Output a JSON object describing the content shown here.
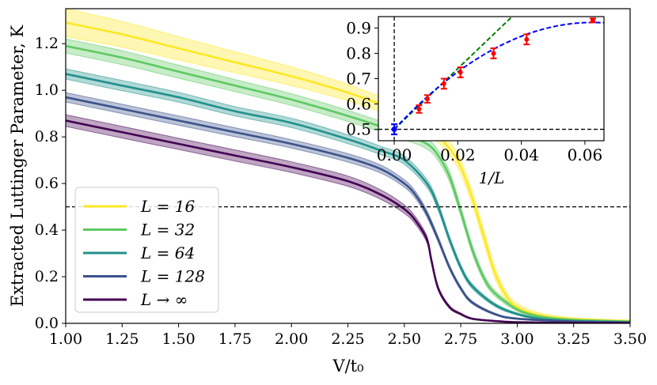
{
  "chart_data": [
    {
      "type": "line",
      "xlabel": "V/t₀",
      "ylabel": "Extracted Luttinger Parameter, K",
      "xlim": [
        1.0,
        3.5
      ],
      "ylim": [
        0.0,
        1.35
      ],
      "xticks": [
        1.0,
        1.25,
        1.5,
        1.75,
        2.0,
        2.25,
        2.5,
        2.75,
        3.0,
        3.25,
        3.5
      ],
      "xtick_labels": [
        "1.00",
        "1.25",
        "1.50",
        "1.75",
        "2.00",
        "2.25",
        "2.50",
        "2.75",
        "3.00",
        "3.25",
        "3.50"
      ],
      "yticks": [
        0.0,
        0.2,
        0.4,
        0.6,
        0.8,
        1.0,
        1.2
      ],
      "ytick_labels": [
        "0.0",
        "0.2",
        "0.4",
        "0.6",
        "0.8",
        "1.0",
        "1.2"
      ],
      "reference_line": {
        "y": 0.5,
        "style": "dashed",
        "color": "#000000"
      },
      "legend_position": "lower-left",
      "series": [
        {
          "name": "L = 16",
          "color": "#fde725",
          "x": [
            1.0,
            1.25,
            1.5,
            1.75,
            2.0,
            2.25,
            2.5,
            2.6,
            2.7,
            2.75,
            2.8,
            2.85,
            2.9,
            2.95,
            3.0,
            3.1,
            3.25,
            3.5
          ],
          "y": [
            1.29,
            1.24,
            1.18,
            1.12,
            1.06,
            0.99,
            0.9,
            0.85,
            0.75,
            0.67,
            0.54,
            0.38,
            0.22,
            0.12,
            0.07,
            0.035,
            0.018,
            0.01
          ],
          "band": [
            0.06,
            0.055,
            0.05,
            0.045,
            0.04,
            0.035,
            0.03,
            0.03,
            0.03,
            0.03,
            0.03,
            0.03,
            0.025,
            0.02,
            0.015,
            0.01,
            0.006,
            0.004
          ]
        },
        {
          "name": "L = 32",
          "color": "#5ec962",
          "x": [
            1.0,
            1.25,
            1.5,
            1.75,
            2.0,
            2.25,
            2.5,
            2.6,
            2.65,
            2.7,
            2.75,
            2.8,
            2.85,
            2.9,
            3.0,
            3.1,
            3.25,
            3.5
          ],
          "y": [
            1.19,
            1.14,
            1.08,
            1.02,
            0.96,
            0.89,
            0.81,
            0.77,
            0.72,
            0.63,
            0.48,
            0.32,
            0.2,
            0.13,
            0.06,
            0.03,
            0.015,
            0.008
          ],
          "band": [
            0.03,
            0.03,
            0.028,
            0.026,
            0.025,
            0.024,
            0.022,
            0.022,
            0.022,
            0.022,
            0.02,
            0.018,
            0.015,
            0.012,
            0.008,
            0.005,
            0.004,
            0.003
          ]
        },
        {
          "name": "L = 64",
          "color": "#21918c",
          "x": [
            1.0,
            1.25,
            1.5,
            1.75,
            2.0,
            2.25,
            2.4,
            2.5,
            2.6,
            2.65,
            2.7,
            2.75,
            2.8,
            2.9,
            3.0,
            3.1,
            3.25,
            3.5
          ],
          "y": [
            1.07,
            1.02,
            0.97,
            0.91,
            0.86,
            0.79,
            0.74,
            0.7,
            0.6,
            0.5,
            0.36,
            0.24,
            0.16,
            0.08,
            0.04,
            0.02,
            0.01,
            0.005
          ],
          "band": [
            0.022,
            0.022,
            0.021,
            0.02,
            0.02,
            0.019,
            0.018,
            0.018,
            0.017,
            0.016,
            0.014,
            0.012,
            0.01,
            0.007,
            0.005,
            0.004,
            0.003,
            0.002
          ]
        },
        {
          "name": "L = 128",
          "color": "#3b528b",
          "x": [
            1.0,
            1.25,
            1.5,
            1.75,
            2.0,
            2.25,
            2.4,
            2.5,
            2.55,
            2.6,
            2.65,
            2.7,
            2.75,
            2.8,
            2.9,
            3.0,
            3.25,
            3.5
          ],
          "y": [
            0.97,
            0.92,
            0.87,
            0.82,
            0.77,
            0.71,
            0.66,
            0.6,
            0.55,
            0.47,
            0.36,
            0.24,
            0.15,
            0.09,
            0.04,
            0.02,
            0.008,
            0.004
          ],
          "band": [
            0.02,
            0.02,
            0.02,
            0.019,
            0.018,
            0.018,
            0.017,
            0.016,
            0.015,
            0.014,
            0.012,
            0.01,
            0.008,
            0.006,
            0.004,
            0.003,
            0.002,
            0.002
          ]
        },
        {
          "name": "L → ∞",
          "color": "#440154",
          "x": [
            1.0,
            1.25,
            1.5,
            1.75,
            2.0,
            2.25,
            2.4,
            2.5,
            2.55,
            2.6,
            2.62,
            2.65,
            2.7,
            2.75,
            2.8,
            2.9,
            3.0,
            3.25,
            3.5
          ],
          "y": [
            0.87,
            0.82,
            0.77,
            0.72,
            0.67,
            0.61,
            0.55,
            0.49,
            0.44,
            0.36,
            0.27,
            0.15,
            0.07,
            0.04,
            0.02,
            0.01,
            0.005,
            0.002,
            0.001
          ],
          "band": [
            0.025,
            0.025,
            0.024,
            0.024,
            0.023,
            0.022,
            0.02,
            0.018,
            0.016,
            0.014,
            0.012,
            0.009,
            0.006,
            0.004,
            0.003,
            0.002,
            0.001,
            0.001,
            0.001
          ]
        }
      ]
    },
    {
      "type": "scatter",
      "xlabel": "1/L",
      "ylabel": "",
      "xlim": [
        -0.005,
        0.066
      ],
      "ylim": [
        0.455,
        0.945
      ],
      "xticks": [
        0.0,
        0.02,
        0.04,
        0.06
      ],
      "xtick_labels": [
        "0.00",
        "0.02",
        "0.04",
        "0.06"
      ],
      "yticks": [
        0.5,
        0.6,
        0.7,
        0.8,
        0.9
      ],
      "ytick_labels": [
        "0.5",
        "0.6",
        "0.7",
        "0.8",
        "0.9"
      ],
      "reference_lines": [
        {
          "axis": "y",
          "value": 0.5,
          "style": "dashed",
          "color": "#000000"
        },
        {
          "axis": "x",
          "value": 0.0,
          "style": "dashed",
          "color": "#000000"
        }
      ],
      "points": {
        "color": "#ff0000",
        "x": [
          0.0625,
          0.03125,
          0.04167,
          0.02083,
          0.01563,
          0.01042,
          0.00781
        ],
        "y": [
          0.93,
          0.8,
          0.855,
          0.725,
          0.68,
          0.62,
          0.58
        ],
        "err": [
          0.008,
          0.02,
          0.02,
          0.02,
          0.02,
          0.015,
          0.015
        ]
      },
      "extrapolated_point": {
        "color": "#0000ff",
        "x": 0.0,
        "y": 0.5,
        "err": 0.02
      },
      "fits": [
        {
          "name": "linear fit",
          "color": "#008000",
          "style": "dashed",
          "intercept": 0.5,
          "slope": 12.0
        },
        {
          "name": "quadratic fit",
          "color": "#0000ff",
          "style": "dashed",
          "c0": 0.5,
          "c1": 13.5,
          "c2": -108.0
        }
      ]
    }
  ]
}
